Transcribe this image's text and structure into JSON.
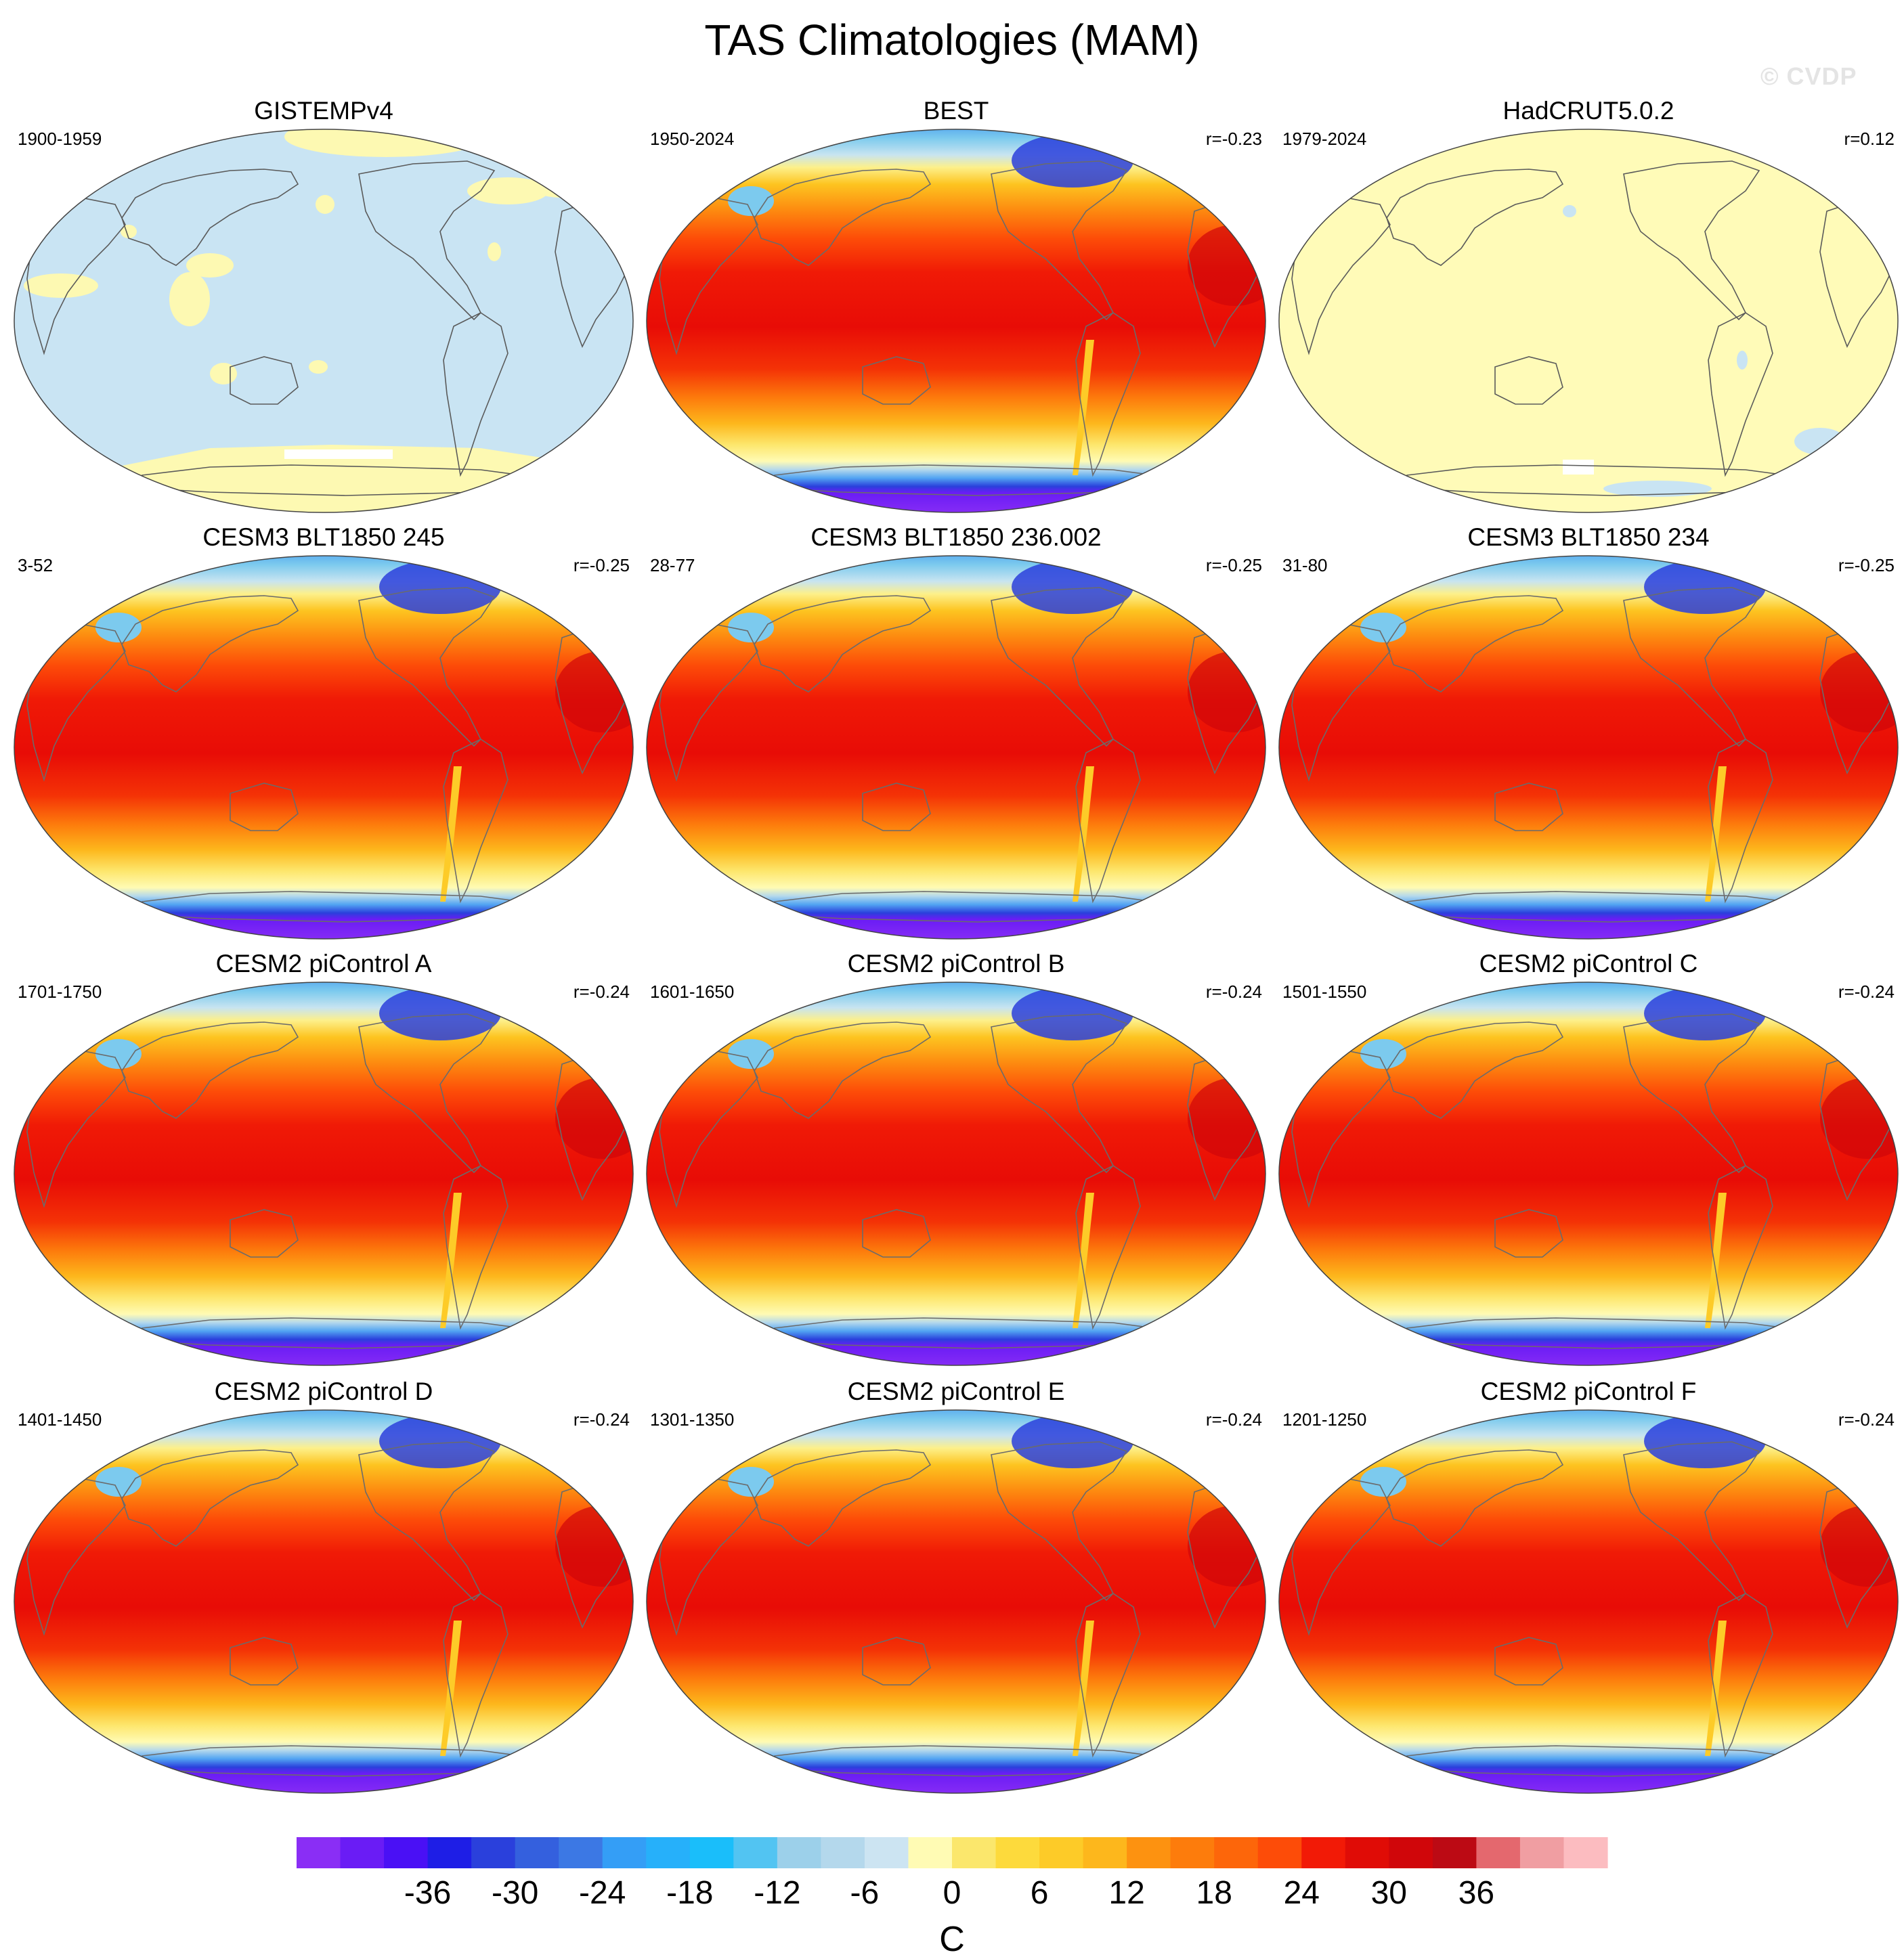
{
  "figure": {
    "title": "TAS Climatologies (MAM)",
    "watermark": "© CVDP"
  },
  "chart_data": {
    "type": "map-grid",
    "title": "TAS Climatologies (MAM)",
    "projection": "Robinson",
    "panels": [
      {
        "title": "GISTEMPv4",
        "period": "1900-1959",
        "pattern_corr": "",
        "field": "obs-sparse"
      },
      {
        "title": "BEST",
        "period": "1950-2024",
        "pattern_corr": "r=-0.23",
        "field": "full"
      },
      {
        "title": "HadCRUT5.0.2",
        "period": "1979-2024",
        "pattern_corr": "r=0.12",
        "field": "obs-flat"
      },
      {
        "title": "CESM3 BLT1850 245",
        "period": "3-52",
        "pattern_corr": "r=-0.25",
        "field": "full"
      },
      {
        "title": "CESM3 BLT1850 236.002",
        "period": "28-77",
        "pattern_corr": "r=-0.25",
        "field": "full"
      },
      {
        "title": "CESM3 BLT1850 234",
        "period": "31-80",
        "pattern_corr": "r=-0.25",
        "field": "full"
      },
      {
        "title": "CESM2 piControl A",
        "period": "1701-1750",
        "pattern_corr": "r=-0.24",
        "field": "full"
      },
      {
        "title": "CESM2 piControl B",
        "period": "1601-1650",
        "pattern_corr": "r=-0.24",
        "field": "full"
      },
      {
        "title": "CESM2 piControl C",
        "period": "1501-1550",
        "pattern_corr": "r=-0.24",
        "field": "full"
      },
      {
        "title": "CESM2 piControl D",
        "period": "1401-1450",
        "pattern_corr": "r=-0.24",
        "field": "full"
      },
      {
        "title": "CESM2 piControl E",
        "period": "1301-1350",
        "pattern_corr": "r=-0.24",
        "field": "full"
      },
      {
        "title": "CESM2 piControl F",
        "period": "1201-1250",
        "pattern_corr": "r=-0.24",
        "field": "full"
      }
    ],
    "colorbar": {
      "label": "C",
      "min": -42,
      "max": 42,
      "step": 3,
      "tick_values": [
        -36,
        -30,
        -24,
        -18,
        -12,
        -6,
        0,
        6,
        12,
        18,
        24,
        30,
        36
      ],
      "tick_labels": [
        "-36",
        "-30",
        "-24",
        "-18",
        "-12",
        "-6",
        "0",
        "6",
        "12",
        "18",
        "24",
        "30",
        "36"
      ],
      "colors": [
        "#8a2ef5",
        "#6a1cf5",
        "#4a10f5",
        "#2a0af0",
        "#1e1ee6",
        "#2a40dc",
        "#3460de",
        "#3c78e4",
        "#3c8cf0",
        "#349ef6",
        "#26b0fa",
        "#1abefa",
        "#52c4f2",
        "#7ccaee",
        "#9cd0ea",
        "#b4d8ec",
        "#cce4f2",
        "#fffbb4",
        "#fdf38e",
        "#fbe76c",
        "#fdda3c",
        "#fdcb28",
        "#fdb71c",
        "#fda414",
        "#fd9210",
        "#fd7c0c",
        "#fd660a",
        "#fd4c08",
        "#fd3206",
        "#f21a06",
        "#e00c06",
        "#d0060a",
        "#bc0a14",
        "#d0363e",
        "#e4686e",
        "#f09ea2",
        "#fcbcc0"
      ]
    }
  }
}
